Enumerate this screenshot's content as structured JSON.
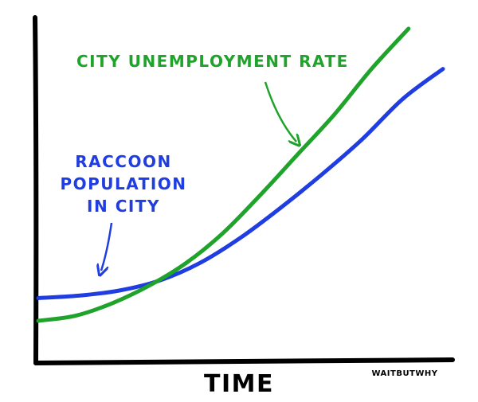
{
  "chart_data": {
    "type": "line",
    "title": "",
    "xlabel": "TIME",
    "ylabel": "",
    "grid": false,
    "legend": "none",
    "x": [
      0,
      1,
      2,
      3,
      4,
      5,
      6,
      7,
      8,
      9,
      10
    ],
    "series": [
      {
        "name": "RACCOON POPULATION IN CITY",
        "label_lines": [
          "RACCOON",
          "POPULATION",
          "IN CITY"
        ],
        "color": "#1f3de0",
        "values": [
          9,
          10,
          12,
          16,
          23,
          33,
          45,
          58,
          72,
          88,
          100
        ]
      },
      {
        "name": "CITY UNEMPLOYMENT RATE",
        "label_lines": [
          "CITY UNEMPLOYMENT RATE"
        ],
        "color": "#1fa32a",
        "values": [
          0,
          2,
          7,
          14,
          23,
          35,
          50,
          66,
          82,
          100,
          116
        ]
      }
    ]
  },
  "credit": "WAITBUTWHY"
}
